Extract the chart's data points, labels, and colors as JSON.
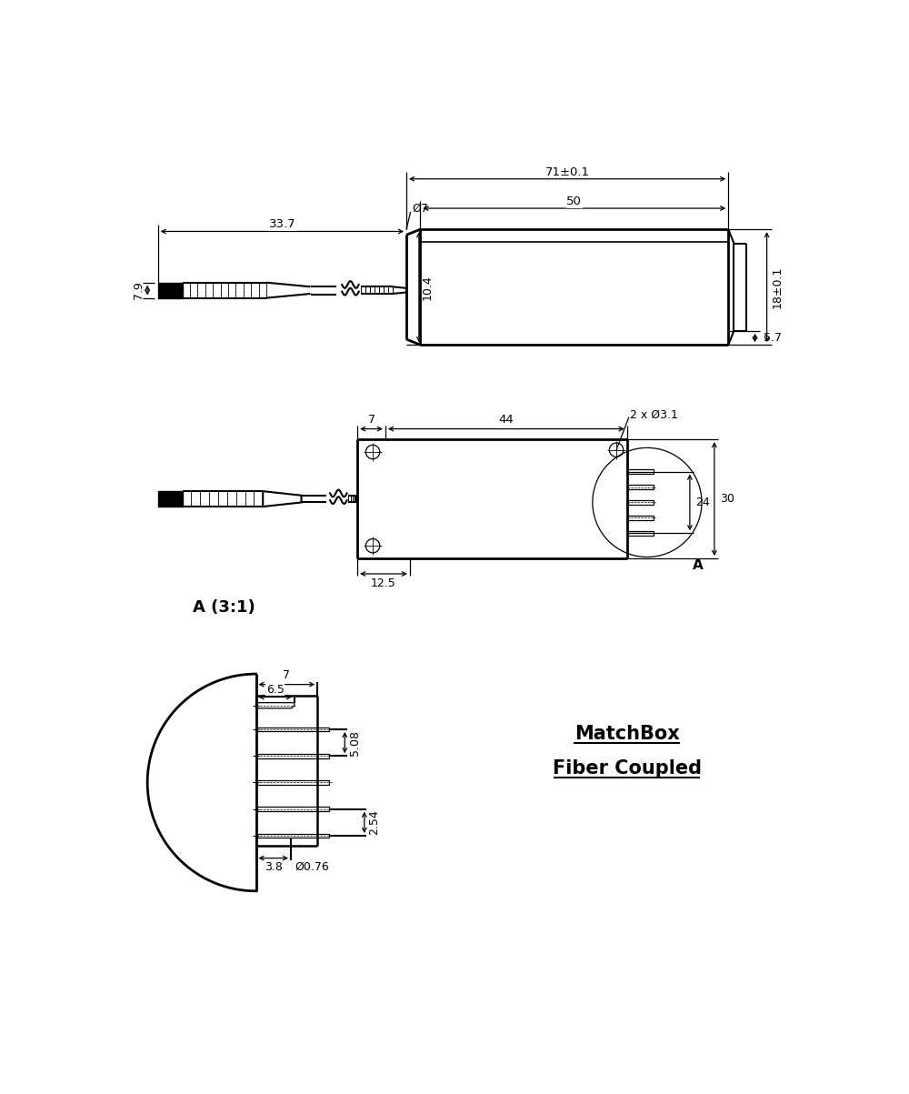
{
  "bg_color": "#ffffff",
  "line_color": "#000000",
  "fig_width": 10.0,
  "fig_height": 12.03,
  "title_line1": "MatchBox",
  "title_line2": "Fiber Coupled",
  "view1": {
    "dim_71": "71±0.1",
    "dim_50": "50",
    "dim_337": "33.7",
    "dim_79": "7.9",
    "dim_o7": "Ø7",
    "dim_104": "10.4",
    "dim_18": "18±0.1",
    "dim_57": "5.7"
  },
  "view2": {
    "dim_7": "7",
    "dim_44": "44",
    "dim_2xo31": "2 x Ø3.1",
    "dim_125": "12.5",
    "dim_24": "24",
    "dim_30": "30",
    "label_A": "A"
  },
  "view3": {
    "label_A31": "A (3:1)",
    "dim_7": "7",
    "dim_65": "6.5",
    "dim_508": "5.08",
    "dim_254": "2.54",
    "dim_38": "3.8",
    "dim_o076": "Ø0.76"
  }
}
